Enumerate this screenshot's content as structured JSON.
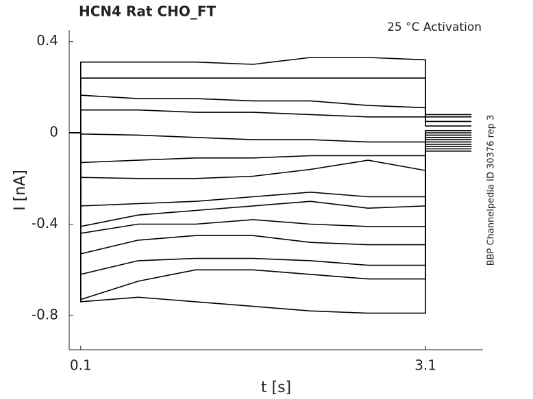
{
  "chart_data": {
    "type": "line",
    "title": "HCN4  Rat  CHO_FT",
    "annotation": "25 °C  Activation",
    "side_note": "BBP Channelpedia ID 30376 rep 3",
    "x_label": "t [s]",
    "y_label": "I [nA]",
    "x": [
      0,
      0.09,
      0.1,
      0.1,
      0.6,
      1.1,
      1.6,
      2.1,
      2.6,
      3.1,
      3.1,
      3.3,
      3.5
    ],
    "series": [
      {
        "color": "#000000",
        "values": [
          0,
          0,
          0,
          0.31,
          0.31,
          0.31,
          0.3,
          0.33,
          0.33,
          0.32,
          0.08,
          0.08,
          0.08
        ]
      },
      {
        "color": "#000000",
        "values": [
          0,
          0,
          0,
          0.24,
          0.24,
          0.24,
          0.24,
          0.24,
          0.24,
          0.24,
          0.07,
          0.07,
          0.07
        ]
      },
      {
        "color": "#000000",
        "values": [
          0,
          0,
          0,
          0.165,
          0.15,
          0.15,
          0.14,
          0.14,
          0.12,
          0.11,
          0.05,
          0.05,
          0.05
        ]
      },
      {
        "color": "#000000",
        "values": [
          0,
          0,
          0,
          0.1,
          0.1,
          0.09,
          0.09,
          0.08,
          0.07,
          0.07,
          0.03,
          0.03,
          0.03
        ]
      },
      {
        "color": "#000000",
        "values": [
          0,
          0,
          0,
          -0.005,
          -0.01,
          -0.02,
          -0.03,
          -0.03,
          -0.04,
          -0.04,
          0.01,
          0.01,
          0.01
        ]
      },
      {
        "color": "#000000",
        "values": [
          0,
          0,
          0,
          -0.13,
          -0.12,
          -0.11,
          -0.11,
          -0.1,
          -0.1,
          -0.1,
          0,
          0,
          0
        ]
      },
      {
        "color": "#000000",
        "values": [
          0,
          0,
          0,
          -0.195,
          -0.2,
          -0.2,
          -0.19,
          -0.16,
          -0.12,
          -0.165,
          -0.01,
          -0.01,
          -0.01
        ]
      },
      {
        "color": "#000000",
        "values": [
          0,
          0,
          0,
          -0.32,
          -0.31,
          -0.3,
          -0.28,
          -0.26,
          -0.28,
          -0.28,
          -0.02,
          -0.02,
          -0.02
        ]
      },
      {
        "color": "#000000",
        "values": [
          0,
          0,
          0,
          -0.41,
          -0.36,
          -0.34,
          -0.32,
          -0.3,
          -0.33,
          -0.32,
          -0.03,
          -0.03,
          -0.03
        ]
      },
      {
        "color": "#000000",
        "values": [
          0,
          0,
          0,
          -0.44,
          -0.4,
          -0.4,
          -0.38,
          -0.4,
          -0.41,
          -0.41,
          -0.04,
          -0.04,
          -0.04
        ]
      },
      {
        "color": "#000000",
        "values": [
          0,
          0,
          0,
          -0.53,
          -0.47,
          -0.45,
          -0.45,
          -0.48,
          -0.49,
          -0.49,
          -0.05,
          -0.05,
          -0.05
        ]
      },
      {
        "color": "#000000",
        "values": [
          0,
          0,
          0,
          -0.62,
          -0.56,
          -0.55,
          -0.55,
          -0.56,
          -0.58,
          -0.58,
          -0.06,
          -0.06,
          -0.06
        ]
      },
      {
        "color": "#000000",
        "values": [
          0,
          0,
          0,
          -0.73,
          -0.65,
          -0.6,
          -0.6,
          -0.62,
          -0.64,
          -0.64,
          -0.07,
          -0.07,
          -0.07
        ]
      },
      {
        "color": "#000000",
        "values": [
          0,
          0,
          0,
          -0.74,
          -0.72,
          -0.74,
          -0.76,
          -0.78,
          -0.79,
          -0.79,
          -0.08,
          -0.08,
          -0.08
        ]
      }
    ],
    "xlim": [
      0,
      3.6
    ],
    "ylim": [
      -0.95,
      0.45
    ],
    "xticks": [
      0.1,
      3.1
    ],
    "yticks": [
      0.4,
      0,
      -0.4,
      -0.8
    ]
  }
}
